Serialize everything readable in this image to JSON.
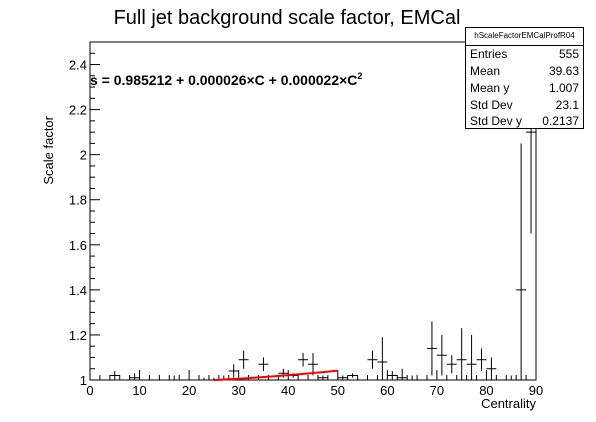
{
  "chart_data": {
    "type": "scatter",
    "title": "Full jet background scale factor, EMCal",
    "xlabel": "Centrality",
    "ylabel": "Scale factor",
    "xlim": [
      0,
      90
    ],
    "ylim": [
      1,
      2.5
    ],
    "x_ticks": [
      "0",
      "10",
      "20",
      "30",
      "40",
      "50",
      "60",
      "70",
      "80",
      "90"
    ],
    "y_ticks": [
      "1",
      "1.2",
      "1.4",
      "1.6",
      "1.8",
      "2",
      "2.2",
      "2.4"
    ],
    "fit_label": "s = 0.985212 + 0.000026×C + 0.000022×C",
    "fit_label_sup": "2",
    "fit": {
      "c0": 0.985212,
      "c1": 2.6e-05,
      "c2": 2.2e-05,
      "x_range": [
        25,
        50
      ],
      "color": "#ff0000"
    },
    "series": [
      {
        "marker": "cross",
        "color": "#000000",
        "points": [
          {
            "x": 1,
            "y": 1.0,
            "err": 0.0
          },
          {
            "x": 5,
            "y": 1.02,
            "err": 0.02
          },
          {
            "x": 9,
            "y": 1.01,
            "err": 0.02
          },
          {
            "x": 13,
            "y": 1.0,
            "err": 0.0
          },
          {
            "x": 17,
            "y": 1.0,
            "err": 0.02
          },
          {
            "x": 23,
            "y": 1.0,
            "err": 0.01
          },
          {
            "x": 25,
            "y": 1.0,
            "err": 0.01
          },
          {
            "x": 27,
            "y": 1.0,
            "err": 0.02
          },
          {
            "x": 29,
            "y": 1.04,
            "err": 0.03
          },
          {
            "x": 31,
            "y": 1.09,
            "err": 0.04
          },
          {
            "x": 35,
            "y": 1.07,
            "err": 0.03
          },
          {
            "x": 39,
            "y": 1.03,
            "err": 0.02
          },
          {
            "x": 41,
            "y": 1.02,
            "err": 0.01
          },
          {
            "x": 43,
            "y": 1.09,
            "err": 0.03
          },
          {
            "x": 45,
            "y": 1.07,
            "err": 0.05
          },
          {
            "x": 47,
            "y": 1.01,
            "err": 0.01
          },
          {
            "x": 51,
            "y": 1.01,
            "err": 0.01
          },
          {
            "x": 53,
            "y": 1.02,
            "err": 0.01
          },
          {
            "x": 57,
            "y": 1.09,
            "err": 0.04
          },
          {
            "x": 59,
            "y": 1.08,
            "err": 0.11
          },
          {
            "x": 61,
            "y": 1.02,
            "err": 0.02
          },
          {
            "x": 63,
            "y": 1.01,
            "err": 0.04
          },
          {
            "x": 65,
            "y": 1.0,
            "err": 0.02
          },
          {
            "x": 69,
            "y": 1.14,
            "err": 0.12
          },
          {
            "x": 71,
            "y": 1.11,
            "err": 0.09
          },
          {
            "x": 73,
            "y": 1.07,
            "err": 0.04
          },
          {
            "x": 75,
            "y": 1.09,
            "err": 0.14
          },
          {
            "x": 77,
            "y": 1.07,
            "err": 0.13
          },
          {
            "x": 79,
            "y": 1.09,
            "err": 0.05
          },
          {
            "x": 81,
            "y": 1.05,
            "err": 0.05
          },
          {
            "x": 85,
            "y": 1.0,
            "err": 0.02
          },
          {
            "x": 87,
            "y": 1.4,
            "err": 0.65
          },
          {
            "x": 89,
            "y": 2.1,
            "err": 0.45
          }
        ]
      }
    ],
    "grid": false,
    "legend_placement": "top-right"
  },
  "stats": {
    "title": "hScaleFactorEMCalProfR04",
    "rows": [
      {
        "label": "Entries",
        "value": "555"
      },
      {
        "label": "Mean",
        "value": "39.63"
      },
      {
        "label": "Mean y",
        "value": "1.007"
      },
      {
        "label": "Std Dev",
        "value": "23.1"
      },
      {
        "label": "Std Dev y",
        "value": "0.2137"
      }
    ]
  }
}
